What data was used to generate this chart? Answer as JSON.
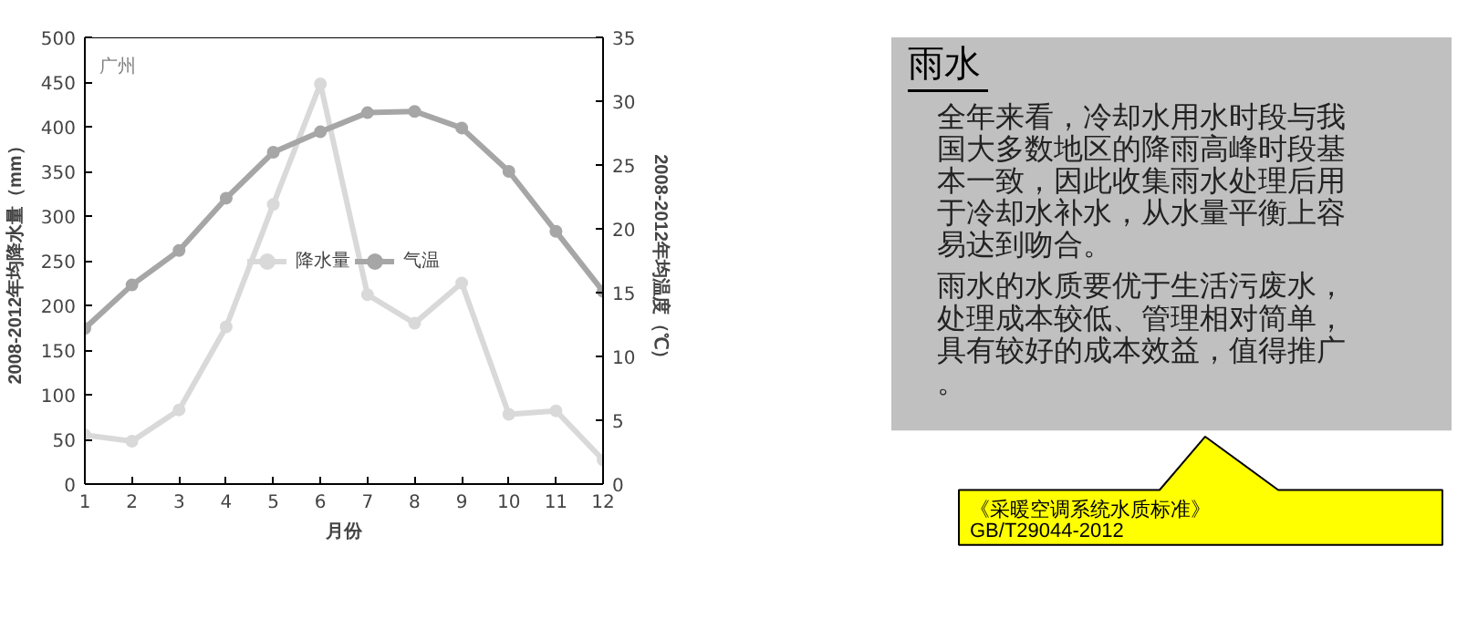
{
  "chart_data": [
    {
      "type": "line",
      "xlabel": "月份",
      "ylabel": "2008-2012年均降水量（mm）",
      "y2label": "2008-2012年均温度（℃）",
      "annotations": [
        "广州"
      ],
      "x": [
        1,
        2,
        3,
        4,
        5,
        6,
        7,
        8,
        9,
        10,
        11,
        12
      ],
      "xlim": [
        1,
        12
      ],
      "xticks": [
        1,
        2,
        3,
        4,
        5,
        6,
        7,
        8,
        9,
        10,
        11,
        12
      ],
      "ylim": [
        0,
        500
      ],
      "yticks": [
        0,
        50,
        100,
        150,
        200,
        250,
        300,
        350,
        400,
        450,
        500
      ],
      "y2lim": [
        0,
        35
      ],
      "y2ticks": [
        0,
        5,
        10,
        15,
        20,
        25,
        30,
        35
      ],
      "series": [
        {
          "name": "降水量",
          "color": "#d9d9d9",
          "values": [
            55,
            48,
            83,
            176,
            313,
            448,
            212,
            180,
            225,
            78,
            82,
            27
          ]
        },
        {
          "name": "气温",
          "color": "#a6a6a6",
          "axis": "y2",
          "values": [
            12.2,
            15.6,
            18.3,
            22.4,
            26.0,
            27.6,
            29.1,
            29.2,
            27.9,
            24.5,
            19.8,
            15.1
          ]
        }
      ],
      "marker": "circle",
      "line_style": "solid",
      "grid": false,
      "legend": "center"
    },
    {
      "type": "other",
      "title": "雨水",
      "annotations": [
        "全年来看，冷却水用水时段与我国大多数地区的降雨高峰时段基本一致，因此收集雨水处理后用于冷却水补水，从水量平衡上容易达到吻合。",
        "雨水的水质要优于生活污废水，处理成本较低、管理相对简单，具有较好的成本效益，值得推广。",
        "《采暖空调系统水质标准》",
        "GB/T29044-2012"
      ]
    }
  ]
}
